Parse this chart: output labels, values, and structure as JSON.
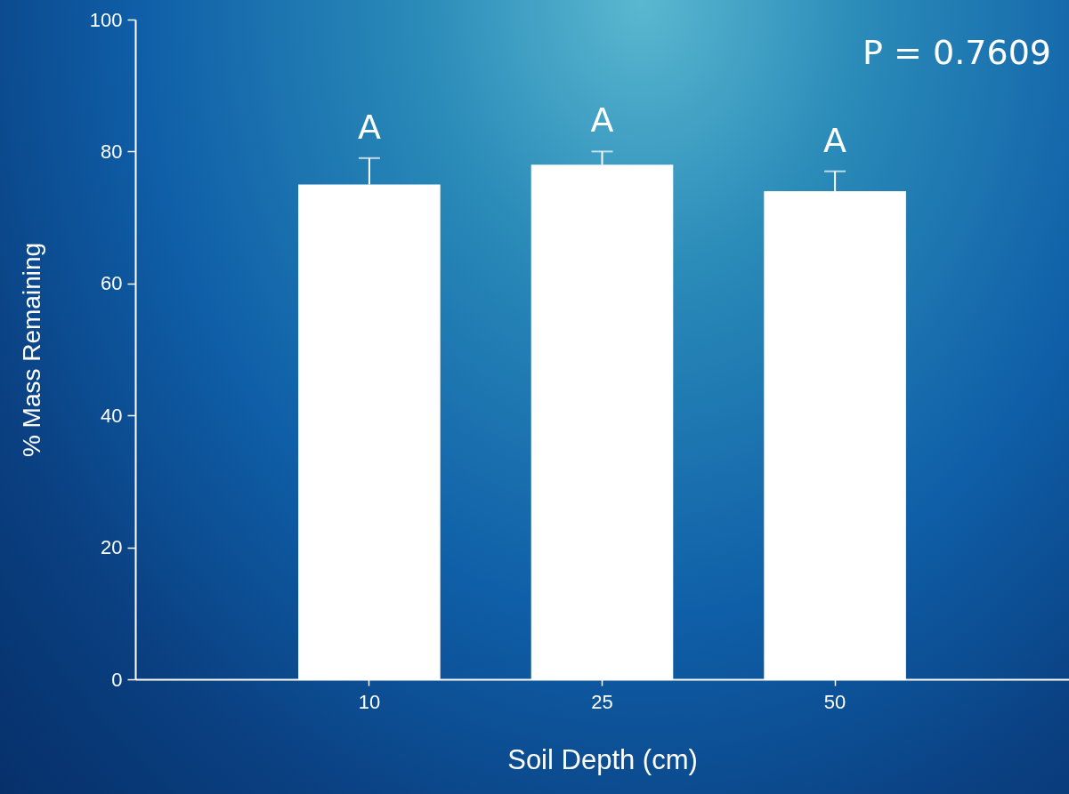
{
  "chart_data": {
    "type": "bar",
    "xlabel": "Soil Depth (cm)",
    "ylabel": "% Mass Remaining",
    "categories": [
      "10",
      "25",
      "50"
    ],
    "values": [
      75,
      78,
      74
    ],
    "errors": [
      [
        75,
        79
      ],
      [
        78,
        80
      ],
      [
        74,
        77
      ]
    ],
    "color": "#ffffff",
    "ylim": [
      0,
      100
    ],
    "yticks": [
      0,
      20,
      40,
      60,
      80,
      100
    ],
    "annotations": [
      "A",
      "A",
      "A",
      "P = 0.7609"
    ]
  }
}
